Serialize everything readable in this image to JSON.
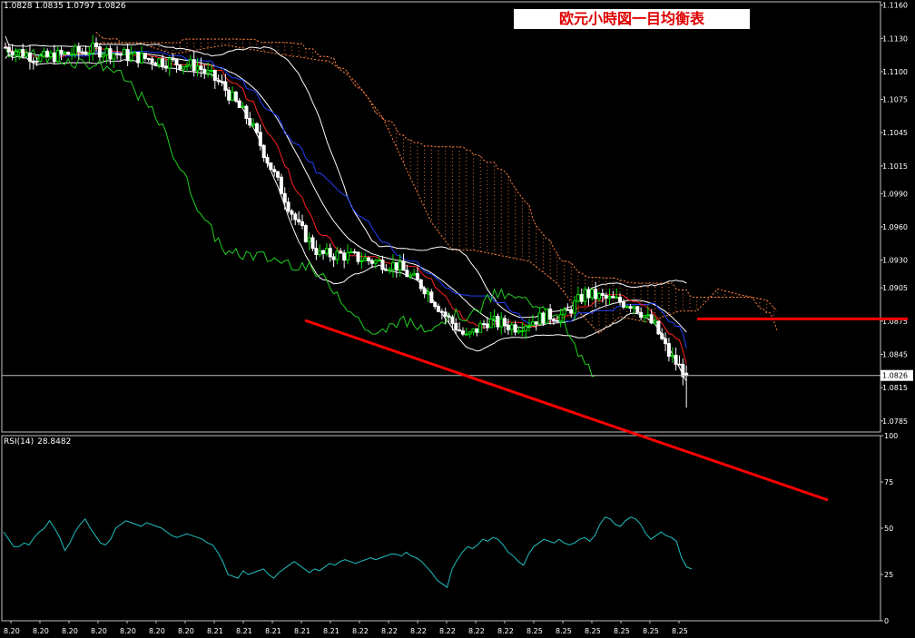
{
  "header": {
    "title": "欧元小時図一目均衡表",
    "ohlc": "1.0828 1.0835 1.0797 1.0826"
  },
  "rsi": {
    "label": "RSI(14)",
    "value": "28.8482"
  },
  "price_marker": "1.0826",
  "colors": {
    "background": "#000000",
    "candle_up": "#00e000",
    "candle_down": "#ffffff",
    "tenkan": "#ff2020",
    "kijun": "#2040ff",
    "chikou": "#20d020",
    "bollinger": "#ffffff",
    "cloud": "#ff8040",
    "rsi": "#20c0c0",
    "trendline": "#ff0000"
  },
  "chart_data": [
    {
      "type": "candlestick",
      "symbol": "EURUSD H1",
      "price_axis_ticks": [
        "1.1160",
        "1.1130",
        "1.1100",
        "1.1075",
        "1.1045",
        "1.1015",
        "1.0990",
        "1.0960",
        "1.0930",
        "1.0905",
        "1.0875",
        "1.0845",
        "1.0815",
        "1.0785"
      ],
      "ylim": [
        1.0775,
        1.1163
      ],
      "x_tick_labels": [
        "8.20",
        "8.20",
        "8.20",
        "8.20",
        "8.20",
        "8.20",
        "8.20",
        "8.21",
        "8.21",
        "8.21",
        "8.21",
        "8.21",
        "8.22",
        "8.22",
        "8.22",
        "8.22",
        "8.22",
        "8.22",
        "8.25",
        "8.25",
        "8.25",
        "8.25",
        "8.25",
        "8.25"
      ],
      "current_price": 1.0826,
      "indicators": [
        "Ichimoku cloud",
        "Bollinger Bands",
        "Tenkan-sen",
        "Kijun-sen",
        "Chikou span"
      ],
      "annotations": [
        "support line at ~1.0877",
        "descending trendline"
      ]
    },
    {
      "type": "line",
      "title": "RSI(14) 28.8482",
      "ylim": [
        0,
        100
      ],
      "y_ticks": [
        "100",
        "75",
        "50",
        "25",
        "0"
      ],
      "values": [
        48,
        44,
        40,
        40,
        42,
        41,
        45,
        48,
        50,
        54,
        50,
        45,
        38,
        42,
        48,
        52,
        55,
        50,
        46,
        42,
        41,
        44,
        50,
        52,
        54,
        53,
        52,
        51,
        53,
        52,
        51,
        50,
        48,
        46,
        45,
        46,
        47,
        46,
        45,
        44,
        42,
        41,
        37,
        32,
        25,
        24,
        23,
        27,
        25,
        26,
        27,
        28,
        25,
        23,
        26,
        28,
        30,
        32,
        30,
        28,
        26,
        28,
        27,
        29,
        31,
        30,
        32,
        33,
        32,
        31,
        32,
        33,
        34,
        33,
        34,
        35,
        36,
        36,
        35,
        37,
        35,
        34,
        32,
        29,
        26,
        22,
        20,
        18,
        28,
        33,
        37,
        40,
        39,
        41,
        44,
        43,
        45,
        44,
        41,
        37,
        35,
        32,
        30,
        36,
        40,
        42,
        44,
        43,
        42,
        44,
        42,
        41,
        42,
        44,
        45,
        43,
        46,
        52,
        56,
        55,
        52,
        51,
        54,
        56,
        55,
        52,
        47,
        44,
        46,
        48,
        46,
        45,
        43,
        34,
        29,
        28
      ]
    }
  ]
}
